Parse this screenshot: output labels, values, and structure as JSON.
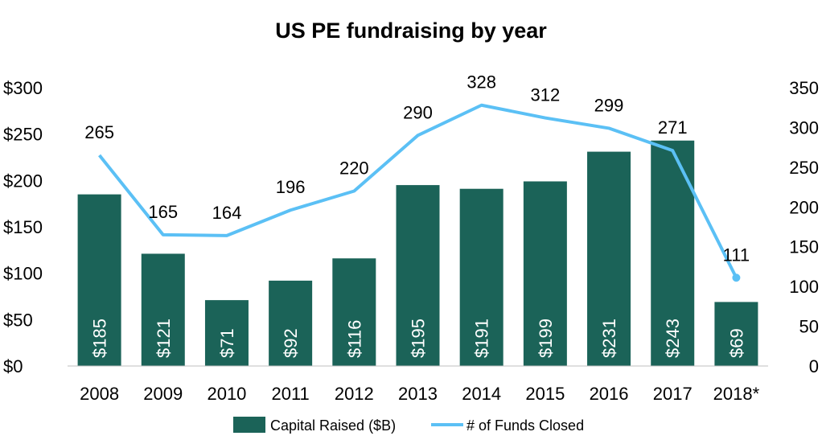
{
  "chart_data": {
    "type": "bar",
    "title": "US PE fundraising by year",
    "categories": [
      "2008",
      "2009",
      "2010",
      "2011",
      "2012",
      "2013",
      "2014",
      "2015",
      "2016",
      "2017",
      "2018*"
    ],
    "series": [
      {
        "name": "Capital Raised ($B)",
        "type": "bar",
        "axis": "left",
        "color": "#1b6358",
        "values": [
          185,
          121,
          71,
          92,
          116,
          195,
          191,
          199,
          231,
          243,
          69
        ],
        "labels": [
          "$185",
          "$121",
          "$71",
          "$92",
          "$116",
          "$195",
          "$191",
          "$199",
          "$231",
          "$243",
          "$69"
        ]
      },
      {
        "name": "# of Funds Closed",
        "type": "line",
        "axis": "right",
        "color": "#5bc0f5",
        "values": [
          265,
          165,
          164,
          196,
          220,
          290,
          328,
          312,
          299,
          271,
          111
        ],
        "labels": [
          "265",
          "165",
          "164",
          "196",
          "220",
          "290",
          "328",
          "312",
          "299",
          "271",
          "111"
        ]
      }
    ],
    "y_left": {
      "lim": [
        0,
        300
      ],
      "ticks": [
        0,
        50,
        100,
        150,
        200,
        250,
        300
      ],
      "tick_labels": [
        "$0",
        "$50",
        "$100",
        "$150",
        "$200",
        "$250",
        "$300"
      ]
    },
    "y_right": {
      "lim": [
        0,
        350
      ],
      "ticks": [
        0,
        50,
        100,
        150,
        200,
        250,
        300,
        350
      ],
      "tick_labels": [
        "0",
        "50",
        "100",
        "150",
        "200",
        "250",
        "300",
        "350"
      ]
    },
    "grid": false,
    "legend_position": "bottom-center"
  }
}
